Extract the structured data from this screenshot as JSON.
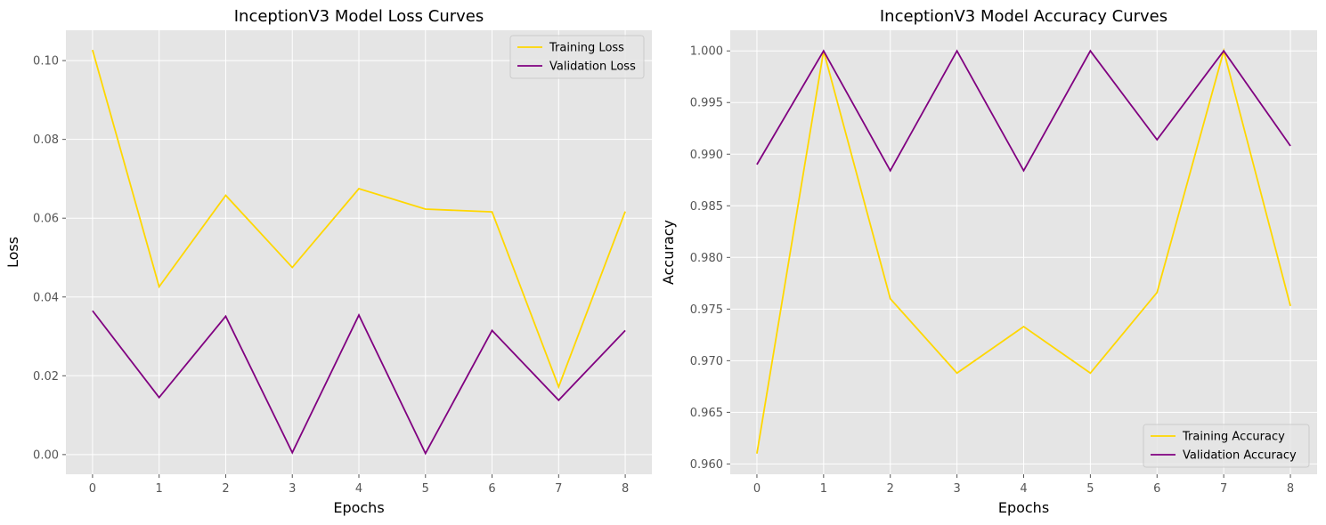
{
  "chart_data": [
    {
      "type": "line",
      "title": "InceptionV3 Model Loss Curves",
      "xlabel": "Epochs",
      "ylabel": "Loss",
      "x": [
        0,
        1,
        2,
        3,
        4,
        5,
        6,
        7,
        8
      ],
      "xticks": [
        "0",
        "1",
        "2",
        "3",
        "4",
        "5",
        "6",
        "7",
        "8"
      ],
      "yticks": [
        "0.00",
        "0.02",
        "0.04",
        "0.06",
        "0.08",
        "0.10"
      ],
      "ylim": [
        -0.005,
        0.1077
      ],
      "xlim": [
        -0.4,
        8.4
      ],
      "grid": true,
      "legend_position": "upper right",
      "series": [
        {
          "name": "Training Loss",
          "color": "#FFD700",
          "values": [
            0.1027,
            0.0426,
            0.0658,
            0.0475,
            0.0675,
            0.0623,
            0.0616,
            0.0172,
            0.0617
          ]
        },
        {
          "name": "Validation Loss",
          "color": "#800080",
          "values": [
            0.0365,
            0.0145,
            0.0351,
            0.0005,
            0.0354,
            0.0003,
            0.0315,
            0.0138,
            0.0315
          ]
        }
      ]
    },
    {
      "type": "line",
      "title": "InceptionV3 Model Accuracy Curves",
      "xlabel": "Epochs",
      "ylabel": "Accuracy",
      "x": [
        0,
        1,
        2,
        3,
        4,
        5,
        6,
        7,
        8
      ],
      "xticks": [
        "0",
        "1",
        "2",
        "3",
        "4",
        "5",
        "6",
        "7",
        "8"
      ],
      "yticks": [
        "0.960",
        "0.965",
        "0.970",
        "0.975",
        "0.980",
        "0.985",
        "0.990",
        "0.995",
        "1.000"
      ],
      "ylim": [
        0.959,
        1.002
      ],
      "xlim": [
        -0.4,
        8.4
      ],
      "grid": true,
      "legend_position": "lower right",
      "series": [
        {
          "name": "Training Accuracy",
          "color": "#FFD700",
          "values": [
            0.961,
            1.0,
            0.976,
            0.9688,
            0.9733,
            0.9688,
            0.9766,
            1.0,
            0.9753
          ]
        },
        {
          "name": "Validation Accuracy",
          "color": "#800080",
          "values": [
            0.989,
            1.0,
            0.9884,
            1.0,
            0.9884,
            1.0,
            0.9914,
            1.0,
            0.9908
          ]
        }
      ]
    }
  ]
}
